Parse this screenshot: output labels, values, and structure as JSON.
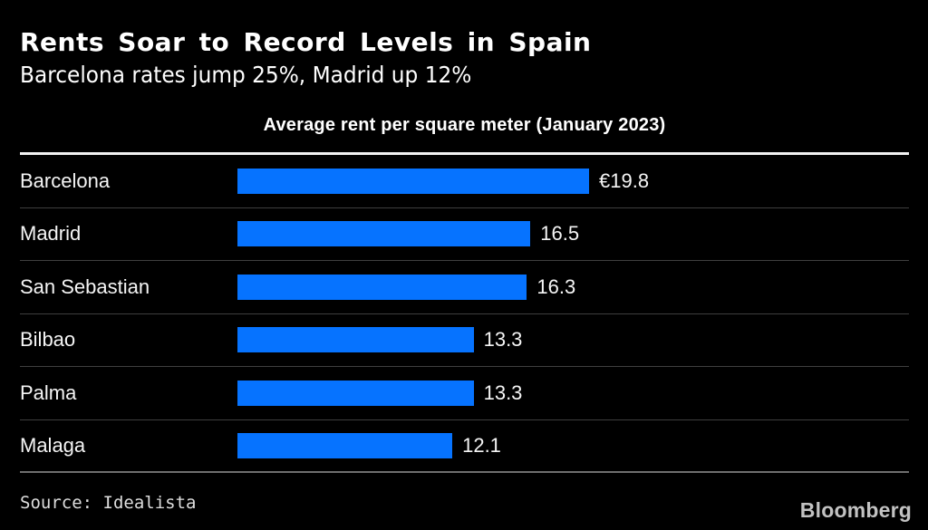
{
  "header": {
    "title": "Rents Soar to Record Levels in Spain",
    "subtitle": "Barcelona rates jump 25%, Madrid up 12%"
  },
  "chart_data": {
    "type": "bar",
    "orientation": "horizontal",
    "title": "Average rent per square meter (January 2023)",
    "categories": [
      "Barcelona",
      "Madrid",
      "San Sebastian",
      "Bilbao",
      "Palma",
      "Malaga"
    ],
    "values": [
      19.8,
      16.5,
      16.3,
      13.3,
      13.3,
      12.1
    ],
    "value_labels": [
      "€19.8",
      "16.5",
      "16.3",
      "13.3",
      "13.3",
      "12.1"
    ],
    "xlabel": "",
    "ylabel": "",
    "xlim": [
      0,
      19.8
    ],
    "grid": false,
    "legend": false,
    "bar_color": "#0673ff"
  },
  "footer": {
    "source": "Source: Idealista",
    "brand": "Bloomberg"
  },
  "colors": {
    "background": "#000000",
    "bar": "#0673ff",
    "text": "#ffffff",
    "divider": "#3f3f3f",
    "rule": "#f2f2f2"
  }
}
